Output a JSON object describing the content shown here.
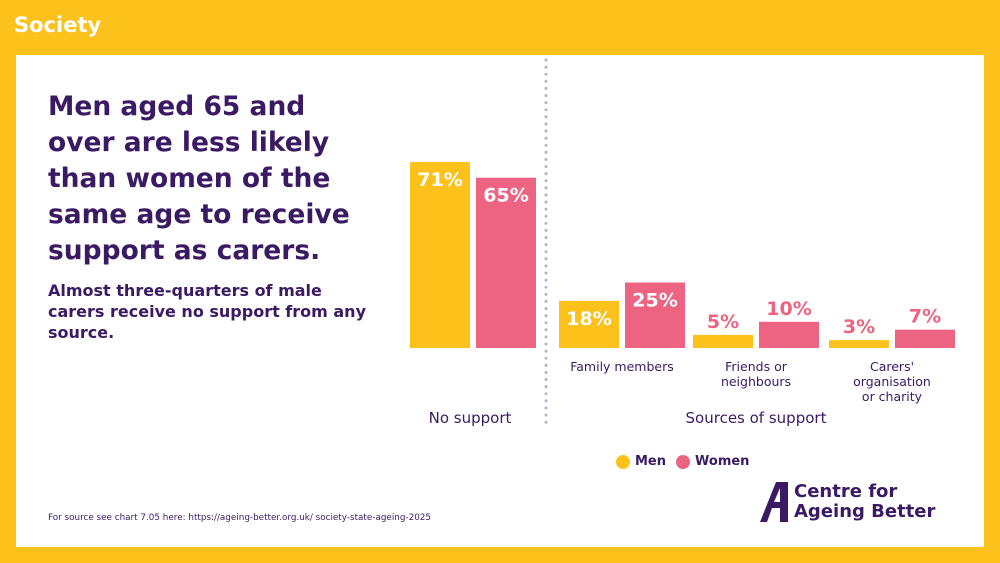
{
  "section_tag": "Society",
  "headline": "Men aged 65 and over are less likely than women of the same age to receive support as carers.",
  "subheadline": "Almost three-quarters of male carers receive no support from any source.",
  "source_note": "For source see chart 7.05 here: https://ageing-better.org.uk/ society-state-ageing-2025",
  "logo": {
    "line1": "Centre for",
    "line2": "Ageing Better"
  },
  "colors": {
    "men": "#fcc21b",
    "women": "#ec6481",
    "text": "#3b1a64",
    "background": "#fcc21b",
    "divider": "#b9b3c9"
  },
  "chart_data": {
    "type": "bar",
    "groups": [
      {
        "label": "No support",
        "categories": [
          ""
        ]
      },
      {
        "label": "Sources of support",
        "categories": [
          "Family members",
          "Friends or neighbours",
          "Carers' organisation or charity"
        ]
      }
    ],
    "categories": [
      "",
      "Family members",
      "Friends or neighbours",
      "Carers' organisation or charity"
    ],
    "category_label_lines": [
      [],
      [
        "Family members"
      ],
      [
        "Friends or",
        "neighbours"
      ],
      [
        "Carers'",
        "organisation",
        "or charity"
      ]
    ],
    "series": [
      {
        "name": "Men",
        "values": [
          71,
          18,
          5,
          3
        ],
        "labels": [
          "71%",
          "18%",
          "5%",
          "3%"
        ]
      },
      {
        "name": "Women",
        "values": [
          65,
          25,
          10,
          7
        ],
        "labels": [
          "65%",
          "25%",
          "10%",
          "7%"
        ]
      }
    ],
    "ylim": [
      0,
      71
    ],
    "legend_position": "bottom",
    "grid": false
  }
}
